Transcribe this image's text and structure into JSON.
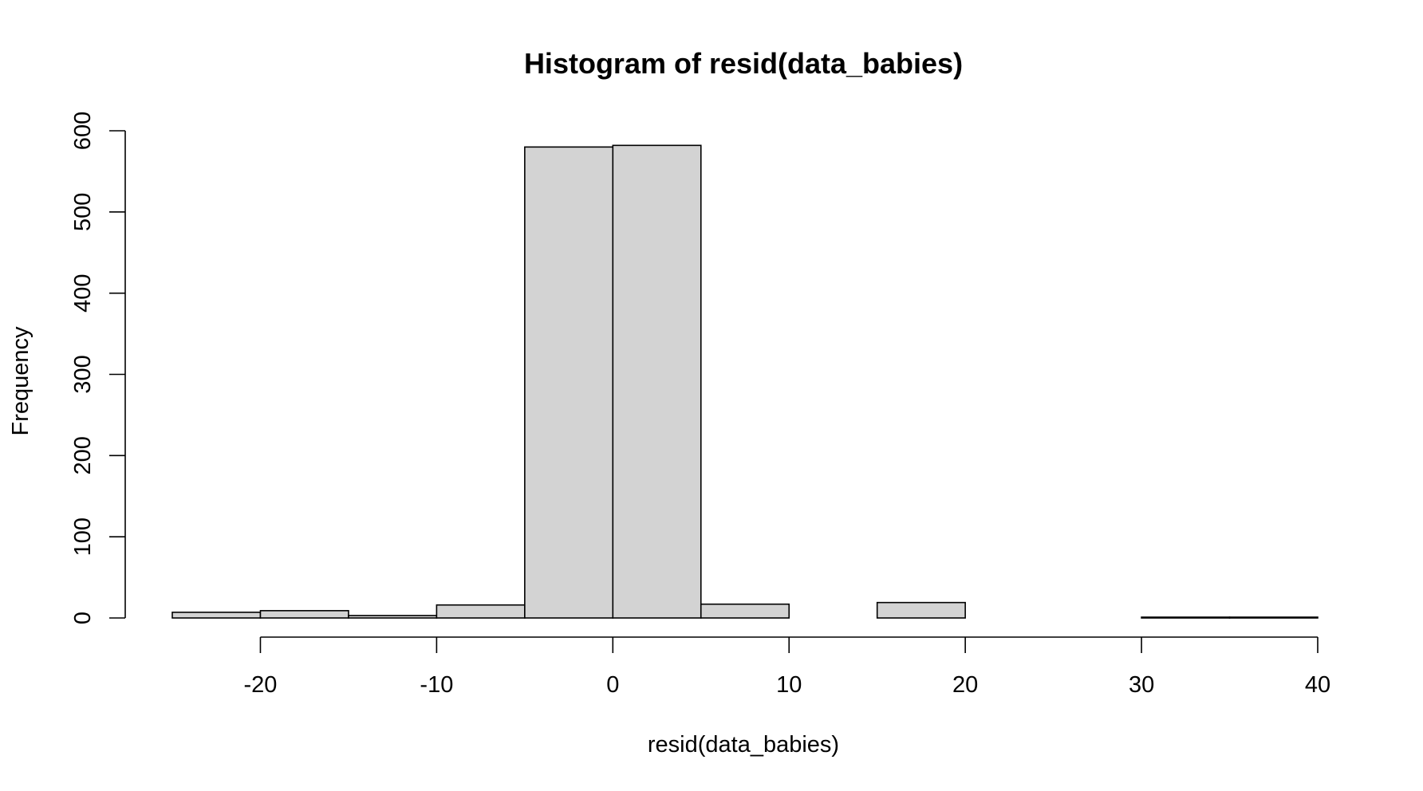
{
  "chart_data": {
    "type": "bar",
    "subtype": "histogram",
    "title": "Histogram of resid(data_babies)",
    "xlabel": "resid(data_babies)",
    "ylabel": "Frequency",
    "bin_edges": [
      -25,
      -20,
      -15,
      -10,
      -5,
      0,
      5,
      10,
      15,
      20,
      25,
      30,
      35,
      40
    ],
    "values": [
      7,
      9,
      3,
      16,
      580,
      582,
      17,
      0,
      19,
      0,
      0,
      1,
      1
    ],
    "xlim": [
      -25,
      40
    ],
    "ylim": [
      0,
      600
    ],
    "x_ticks": [
      -20,
      -10,
      0,
      10,
      20,
      30,
      40
    ],
    "y_ticks": [
      0,
      100,
      200,
      300,
      400,
      500,
      600
    ],
    "bar_fill": "#d3d3d3",
    "bar_stroke": "#000000",
    "grid": false,
    "legend": "none"
  }
}
